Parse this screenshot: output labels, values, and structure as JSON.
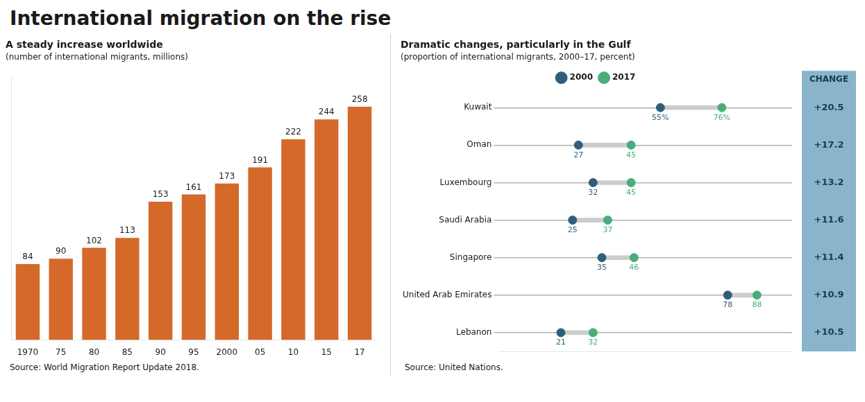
{
  "title": "International migration on the rise",
  "chart_data": [
    {
      "type": "bar",
      "title": "A steady increase worldwide",
      "subtitle": "(number of international migrants, millions)",
      "categories": [
        "1970",
        "75",
        "80",
        "85",
        "90",
        "95",
        "2000",
        "05",
        "10",
        "15",
        "17"
      ],
      "values": [
        84,
        90,
        102,
        113,
        153,
        161,
        173,
        191,
        222,
        244,
        258
      ],
      "color": "#d4692a",
      "ylim": [
        0,
        290
      ],
      "grid": false,
      "tick_labels": "x",
      "data_labels": true,
      "annotations": [
        "Source: World Migration Report Update 2018."
      ]
    },
    {
      "type": "dumbbell",
      "orientation": "horizontal",
      "title": "Dramatic changes, particularly in the Gulf",
      "subtitle": "(proportion of international migrants, 2000–17, percent)",
      "categories": [
        "Kuwait",
        "Oman",
        "Luxembourg",
        "Saudi Arabia",
        "Singapore",
        "United Arab Emirates",
        "Lebanon"
      ],
      "series": [
        {
          "name": "2000",
          "color": "#2e5f7a",
          "marker": "circle",
          "values": [
            55,
            27,
            32,
            25,
            35,
            78,
            21
          ],
          "value_labels": [
            "55%",
            "27",
            "32",
            "25",
            "35",
            "78",
            "21"
          ]
        },
        {
          "name": "2017",
          "color": "#4aac7a",
          "marker": "circle",
          "values": [
            76,
            45,
            45,
            37,
            46,
            88,
            32
          ],
          "value_labels": [
            "76%",
            "45",
            "45",
            "37",
            "46",
            "88",
            "32"
          ]
        }
      ],
      "change": {
        "title": "CHANGE",
        "color": "#89b4cc",
        "values": [
          20.5,
          17.2,
          13.2,
          11.6,
          11.4,
          10.9,
          10.5
        ],
        "value_labels": [
          "+20.5",
          "+17.2",
          "+13.2",
          "+11.6",
          "+11.4",
          "+10.9",
          "+10.5"
        ]
      },
      "xlim": [
        0,
        100
      ],
      "grid": true,
      "legend": "top",
      "tick_labels": "y",
      "data_labels": true,
      "annotations": [
        "Source: United Nations."
      ]
    }
  ]
}
